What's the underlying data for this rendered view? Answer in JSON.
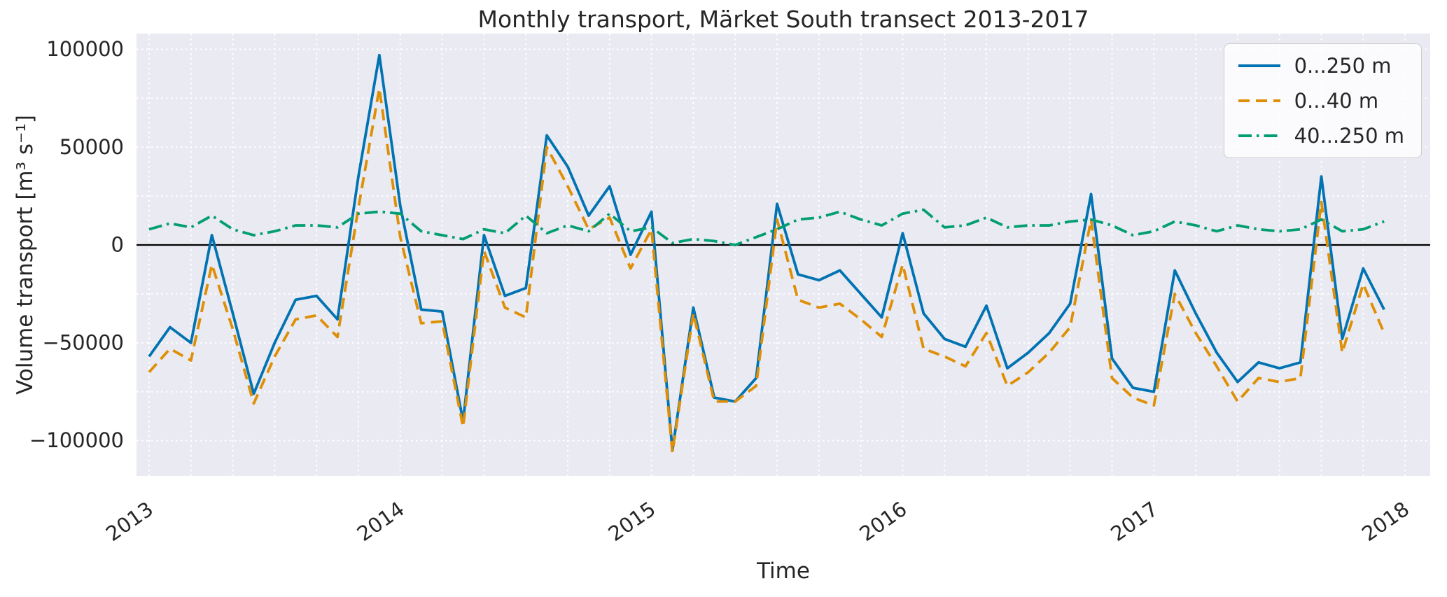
{
  "figure": {
    "title": "Monthly transport, Märket South transect 2013-2017",
    "xlabel": "Time",
    "ylabel": "Volume transport [m³ s⁻¹]",
    "background_color": "#ffffff",
    "plot_background_color": "#eaeaf2",
    "grid_color": "#ffffff",
    "zero_line_color": "#000000",
    "text_color": "#262626"
  },
  "chart_data": {
    "type": "line",
    "title": "Monthly transport, Märket South transect 2013-2017",
    "xlabel": "Time",
    "ylabel": "Volume transport [m^3 s^-1]",
    "x_interval": "monthly",
    "x_start": 2013.0,
    "x_step": 0.0833333,
    "n_points": 60,
    "xlim": [
      2012.95,
      2018.1
    ],
    "ylim": [
      -118000,
      108000
    ],
    "x_ticks": [
      2013,
      2014,
      2015,
      2016,
      2017,
      2018
    ],
    "x_tick_labels": [
      "2013",
      "2014",
      "2015",
      "2016",
      "2017",
      "2018"
    ],
    "y_ticks": [
      -100000,
      -50000,
      0,
      50000,
      100000
    ],
    "y_tick_labels": [
      "−100000",
      "−50000",
      "0",
      "50000",
      "100000"
    ],
    "grid": "white dotted gridlines, vertical every 2 months, horizontal every 25000",
    "legend_position": "upper right",
    "series": [
      {
        "id": "total",
        "name": "0...250 m",
        "color": "#0173b2",
        "line_style": "solid",
        "values": [
          -57000,
          -42000,
          -50000,
          5000,
          -35000,
          -76000,
          -50000,
          -28000,
          -26000,
          -38000,
          35000,
          97000,
          20000,
          -33000,
          -34000,
          -90000,
          5000,
          -26000,
          -22000,
          56000,
          40000,
          15000,
          30000,
          -5000,
          17000,
          -105000,
          -32000,
          -78000,
          -80000,
          -68000,
          21000,
          -15000,
          -18000,
          -13000,
          -25000,
          -37000,
          6000,
          -35000,
          -48000,
          -52000,
          -31000,
          -63000,
          -55000,
          -45000,
          -30000,
          26000,
          -58000,
          -73000,
          -75000,
          -13000,
          -35000,
          -55000,
          -70000,
          -60000,
          -63000,
          -60000,
          35000,
          -48000,
          -12000,
          -33000
        ]
      },
      {
        "id": "surface",
        "name": "0...40 m",
        "color": "#de8f05",
        "line_style": "dashed",
        "values": [
          -65000,
          -53000,
          -59000,
          -10000,
          -43000,
          -81000,
          -57000,
          -38000,
          -36000,
          -47000,
          19000,
          80000,
          4000,
          -40000,
          -39000,
          -93000,
          -3000,
          -32000,
          -37000,
          50000,
          30000,
          8000,
          14000,
          -12000,
          8000,
          -106000,
          -35000,
          -80000,
          -80000,
          -72000,
          13000,
          -28000,
          -32000,
          -30000,
          -38000,
          -47000,
          -10000,
          -53000,
          -57000,
          -62000,
          -45000,
          -72000,
          -65000,
          -55000,
          -42000,
          13000,
          -68000,
          -78000,
          -82000,
          -25000,
          -45000,
          -62000,
          -80000,
          -68000,
          -70000,
          -68000,
          22000,
          -55000,
          -20000,
          -45000
        ]
      },
      {
        "id": "deep",
        "name": "40...250 m",
        "color": "#029e73",
        "line_style": "dashdot",
        "values": [
          8000,
          11000,
          9000,
          15000,
          8000,
          5000,
          7000,
          10000,
          10000,
          9000,
          16000,
          17000,
          16000,
          7000,
          5000,
          3000,
          8000,
          6000,
          15000,
          6000,
          10000,
          7000,
          16000,
          7000,
          9000,
          1000,
          3000,
          2000,
          0,
          4000,
          8000,
          13000,
          14000,
          17000,
          13000,
          10000,
          16000,
          18000,
          9000,
          10000,
          14000,
          9000,
          10000,
          10000,
          12000,
          13000,
          10000,
          5000,
          7000,
          12000,
          10000,
          7000,
          10000,
          8000,
          7000,
          8000,
          13000,
          7000,
          8000,
          12000
        ]
      }
    ]
  }
}
